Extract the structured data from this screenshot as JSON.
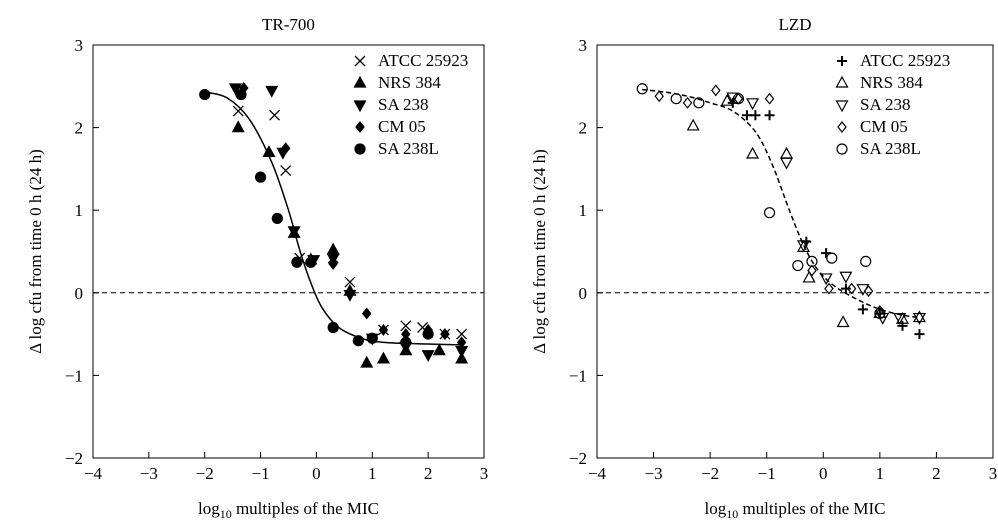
{
  "chart_data": [
    {
      "type": "scatter",
      "title": "TR-700",
      "xlabel": "log10 multiples of the MIC",
      "ylabel": "Δ log cfu from time 0 h (24 h)",
      "xlim": [
        -4,
        3
      ],
      "ylim": [
        -2,
        3
      ],
      "xticks": [
        -4,
        -3,
        -2,
        -1,
        0,
        1,
        2,
        3
      ],
      "yticks": [
        -2,
        -1,
        0,
        1,
        2,
        3
      ],
      "grid": false,
      "legend_position": "top-right",
      "reference_line_y": 0,
      "fit_curve": {
        "style": "solid",
        "points": [
          [
            -2.0,
            2.43
          ],
          [
            -1.6,
            2.36
          ],
          [
            -1.2,
            2.1
          ],
          [
            -0.8,
            1.58
          ],
          [
            -0.5,
            1.0
          ],
          [
            -0.3,
            0.52
          ],
          [
            -0.1,
            0.12
          ],
          [
            0.1,
            -0.18
          ],
          [
            0.4,
            -0.42
          ],
          [
            0.8,
            -0.55
          ],
          [
            1.2,
            -0.6
          ],
          [
            2.0,
            -0.62
          ],
          [
            2.6,
            -0.63
          ]
        ]
      },
      "series": [
        {
          "name": "ATCC 25923",
          "marker": "x",
          "points": [
            [
              -1.4,
              2.2
            ],
            [
              -0.75,
              2.15
            ],
            [
              -0.55,
              1.48
            ],
            [
              -0.3,
              0.42
            ],
            [
              0.3,
              0.42
            ],
            [
              0.6,
              0.13
            ],
            [
              1.2,
              -0.45
            ],
            [
              1.6,
              -0.4
            ],
            [
              1.9,
              -0.42
            ],
            [
              2.3,
              -0.5
            ],
            [
              2.6,
              -0.5
            ]
          ]
        },
        {
          "name": "NRS 384",
          "marker": "triangle-up",
          "points": [
            [
              -1.4,
              2.0
            ],
            [
              -0.85,
              1.7
            ],
            [
              -0.4,
              0.72
            ],
            [
              -0.1,
              0.4
            ],
            [
              0.3,
              0.52
            ],
            [
              0.6,
              0.02
            ],
            [
              0.9,
              -0.85
            ],
            [
              1.2,
              -0.8
            ],
            [
              1.6,
              -0.7
            ],
            [
              2.2,
              -0.7
            ],
            [
              2.6,
              -0.8
            ]
          ]
        },
        {
          "name": "SA 238",
          "marker": "triangle-down",
          "points": [
            [
              -1.45,
              2.48
            ],
            [
              -0.8,
              2.45
            ],
            [
              -0.6,
              1.7
            ],
            [
              -0.4,
              0.75
            ],
            [
              -0.05,
              0.4
            ],
            [
              0.3,
              0.42
            ],
            [
              0.6,
              -0.02
            ],
            [
              1.0,
              -0.55
            ],
            [
              1.6,
              -0.65
            ],
            [
              2.0,
              -0.75
            ],
            [
              2.6,
              -0.7
            ]
          ]
        },
        {
          "name": "CM 05",
          "marker": "diamond",
          "points": [
            [
              -1.3,
              2.48
            ],
            [
              -0.55,
              1.75
            ],
            [
              0.3,
              0.35
            ],
            [
              0.9,
              -0.25
            ],
            [
              1.2,
              -0.45
            ],
            [
              1.6,
              -0.5
            ],
            [
              2.0,
              -0.45
            ],
            [
              2.3,
              -0.5
            ],
            [
              2.6,
              -0.6
            ]
          ]
        },
        {
          "name": "SA 238L",
          "marker": "circle",
          "points": [
            [
              -2.0,
              2.4
            ],
            [
              -1.35,
              2.4
            ],
            [
              -1.0,
              1.4
            ],
            [
              -0.7,
              0.9
            ],
            [
              -0.35,
              0.37
            ],
            [
              -0.1,
              0.37
            ],
            [
              0.3,
              -0.42
            ],
            [
              0.75,
              -0.58
            ],
            [
              1.0,
              -0.55
            ],
            [
              1.6,
              -0.6
            ],
            [
              2.0,
              -0.5
            ]
          ]
        }
      ]
    },
    {
      "type": "scatter",
      "title": "LZD",
      "xlabel": "log10 multiples of the MIC",
      "ylabel": "Δ log cfu from time 0 h (24 h)",
      "xlim": [
        -4,
        3
      ],
      "ylim": [
        -2,
        3
      ],
      "xticks": [
        -4,
        -3,
        -2,
        -1,
        0,
        1,
        2,
        3
      ],
      "yticks": [
        -2,
        -1,
        0,
        1,
        2,
        3
      ],
      "grid": false,
      "legend_position": "top-right",
      "reference_line_y": 0,
      "fit_curve": {
        "style": "dashed",
        "points": [
          [
            -3.2,
            2.46
          ],
          [
            -2.8,
            2.43
          ],
          [
            -2.4,
            2.38
          ],
          [
            -2.0,
            2.3
          ],
          [
            -1.6,
            2.2
          ],
          [
            -1.2,
            1.95
          ],
          [
            -0.9,
            1.55
          ],
          [
            -0.6,
            1.0
          ],
          [
            -0.35,
            0.58
          ],
          [
            -0.1,
            0.28
          ],
          [
            0.2,
            0.08
          ],
          [
            0.6,
            -0.08
          ],
          [
            1.0,
            -0.2
          ],
          [
            1.4,
            -0.27
          ],
          [
            1.7,
            -0.3
          ]
        ]
      },
      "series": [
        {
          "name": "ATCC 25923",
          "marker": "plus",
          "points": [
            [
              -1.6,
              2.3
            ],
            [
              -1.35,
              2.15
            ],
            [
              -1.2,
              2.15
            ],
            [
              -0.95,
              2.15
            ],
            [
              -0.3,
              0.62
            ],
            [
              0.05,
              0.48
            ],
            [
              0.4,
              0.05
            ],
            [
              0.7,
              -0.2
            ],
            [
              1.0,
              -0.25
            ],
            [
              1.4,
              -0.4
            ],
            [
              1.7,
              -0.5
            ]
          ]
        },
        {
          "name": "NRS 384",
          "marker": "triangle-up-open",
          "points": [
            [
              -2.3,
              2.02
            ],
            [
              -1.7,
              2.32
            ],
            [
              -1.25,
              1.68
            ],
            [
              -0.65,
              1.68
            ],
            [
              -0.35,
              0.55
            ],
            [
              -0.25,
              0.18
            ],
            [
              0.35,
              -0.36
            ],
            [
              1.0,
              -0.25
            ],
            [
              1.4,
              -0.32
            ],
            [
              1.7,
              -0.3
            ]
          ]
        },
        {
          "name": "SA 238",
          "marker": "triangle-down-open",
          "points": [
            [
              -1.6,
              2.37
            ],
            [
              -1.25,
              2.3
            ],
            [
              -0.65,
              1.58
            ],
            [
              -0.35,
              0.58
            ],
            [
              0.05,
              0.18
            ],
            [
              0.4,
              0.2
            ],
            [
              0.7,
              0.05
            ],
            [
              1.05,
              -0.3
            ],
            [
              1.35,
              -0.3
            ],
            [
              1.7,
              -0.3
            ]
          ]
        },
        {
          "name": "CM 05",
          "marker": "diamond-open",
          "points": [
            [
              -2.9,
              2.38
            ],
            [
              -2.4,
              2.3
            ],
            [
              -1.9,
              2.45
            ],
            [
              -1.5,
              2.35
            ],
            [
              -0.95,
              2.35
            ],
            [
              -0.2,
              0.27
            ],
            [
              0.1,
              0.05
            ],
            [
              0.5,
              0.05
            ],
            [
              0.8,
              0.02
            ],
            [
              1.0,
              -0.22
            ]
          ]
        },
        {
          "name": "SA 238L",
          "marker": "circle-open",
          "points": [
            [
              -3.2,
              2.47
            ],
            [
              -2.6,
              2.35
            ],
            [
              -2.2,
              2.3
            ],
            [
              -1.5,
              2.35
            ],
            [
              -0.95,
              0.97
            ],
            [
              -0.45,
              0.33
            ],
            [
              -0.2,
              0.38
            ],
            [
              0.15,
              0.42
            ],
            [
              0.75,
              0.38
            ],
            [
              1.0,
              -0.25
            ]
          ]
        }
      ]
    }
  ]
}
